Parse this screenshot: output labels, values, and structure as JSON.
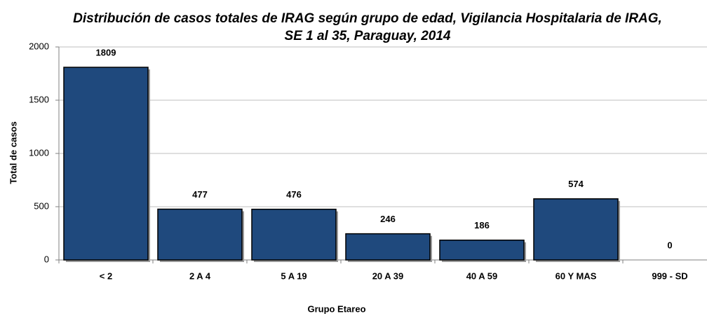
{
  "chart_data": {
    "type": "bar",
    "title": "Distribución de casos totales de IRAG según grupo de edad, Vigilancia Hospitalaria de IRAG, SE 1 al 35, Paraguay, 2014",
    "x_label": "Grupo Etareo",
    "y_label": "Total de casos",
    "categories": [
      "< 2",
      "2 A 4",
      "5 A 19",
      "20 A 39",
      "40 A 59",
      "60 Y MAS",
      "999 - SD"
    ],
    "values": [
      1809,
      477,
      476,
      246,
      186,
      574,
      0
    ],
    "color": "#1f497d",
    "ylim": [
      0,
      2000
    ],
    "yticks": [
      0,
      500,
      1000,
      1500,
      2000
    ],
    "grid": true
  }
}
